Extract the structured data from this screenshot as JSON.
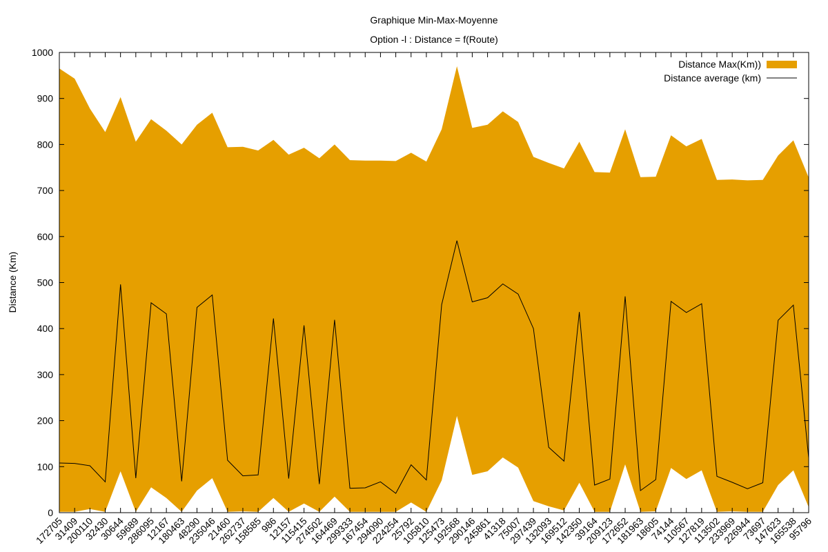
{
  "chart_data": {
    "type": "area",
    "title": "Graphique Min-Max-Moyenne",
    "subtitle": "Option -l : Distance = f(Route)",
    "xlabel": "",
    "ylabel": "Distance (Km)",
    "ylim": [
      0,
      1000
    ],
    "yticks": [
      0,
      100,
      200,
      300,
      400,
      500,
      600,
      700,
      800,
      900,
      1000
    ],
    "grid": false,
    "legend_position": "top-right",
    "colors": {
      "band": "#e69f00",
      "average": "#000000"
    },
    "categories": [
      "172705",
      "31409",
      "200110",
      "32430",
      "30644",
      "59689",
      "286095",
      "12167",
      "180463",
      "48290",
      "235046",
      "21460",
      "262737",
      "158585",
      "986",
      "12157",
      "115415",
      "274502",
      "164469",
      "299333",
      "167454",
      "294090",
      "224254",
      "25792",
      "105810",
      "125473",
      "192568",
      "290146",
      "245861",
      "41318",
      "75007",
      "297439",
      "132093",
      "169512",
      "142350",
      "39164",
      "209123",
      "172652",
      "181963",
      "18605",
      "74144",
      "110567",
      "127819",
      "113502",
      "233969",
      "226944",
      "73697",
      "147623",
      "165538",
      "95796"
    ],
    "series": [
      {
        "name": "Distance Max(Km))",
        "kind": "band",
        "min": [
          2,
          2,
          8,
          2,
          90,
          2,
          55,
          32,
          2,
          48,
          75,
          2,
          3,
          2,
          32,
          2,
          20,
          2,
          35,
          2,
          2,
          2,
          2,
          22,
          2,
          70,
          210,
          82,
          90,
          120,
          98,
          25,
          14,
          5,
          65,
          2,
          2,
          105,
          2,
          3,
          97,
          73,
          92,
          2,
          3,
          2,
          2,
          60,
          92,
          12
        ],
        "max": [
          965,
          943,
          878,
          827,
          903,
          806,
          855,
          830,
          800,
          843,
          869,
          794,
          795,
          787,
          810,
          778,
          793,
          770,
          800,
          766,
          765,
          765,
          764,
          782,
          763,
          833,
          970,
          836,
          843,
          872,
          849,
          773,
          760,
          748,
          806,
          740,
          739,
          833,
          729,
          730,
          820,
          796,
          812,
          723,
          724,
          722,
          723,
          776,
          809,
          728
        ]
      },
      {
        "name": "Distance average (km)",
        "kind": "line",
        "values": [
          108,
          107,
          102,
          67,
          496,
          75,
          456,
          432,
          68,
          446,
          473,
          114,
          80,
          82,
          422,
          74,
          407,
          62,
          419,
          53,
          54,
          67,
          42,
          104,
          71,
          452,
          591,
          458,
          467,
          497,
          475,
          400,
          142,
          112,
          436,
          60,
          73,
          470,
          48,
          72,
          459,
          435,
          454,
          79,
          66,
          52,
          65,
          418,
          451,
          119
        ]
      }
    ]
  }
}
